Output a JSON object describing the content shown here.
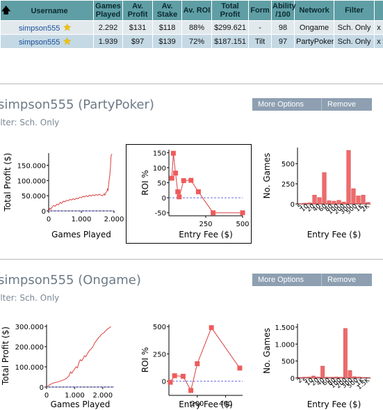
{
  "table": {
    "headers": {
      "username": "Username",
      "games_played": [
        "Games",
        "Played"
      ],
      "avg_profit": [
        "Av.",
        "Profit"
      ],
      "avg_stake": [
        "Av.",
        "Stake"
      ],
      "avg_roi": "Av. ROI",
      "total_profit": [
        "Total",
        "Profit"
      ],
      "form": "Form",
      "ability": [
        "Ability",
        "/100"
      ],
      "network": "Network",
      "filter": "Filter"
    },
    "rows": [
      {
        "username": "simpson555",
        "games_played": "2.292",
        "avg_profit": "$131",
        "avg_stake": "$118",
        "avg_roi": "88%",
        "total_profit": "$299.621",
        "form": "-",
        "ability": "98",
        "network": "Ongame",
        "filter": "Sch. Only",
        "remove": "x"
      },
      {
        "username": "simpson555",
        "games_played": "1.939",
        "avg_profit": "$97",
        "avg_stake": "$139",
        "avg_roi": "72%",
        "total_profit": "$187.151",
        "form": "Tilt",
        "ability": "97",
        "network": "PartyPoker",
        "filter": "Sch. Only",
        "remove": "x"
      }
    ]
  },
  "colors": {
    "header_bg": "#5f9ea5",
    "row1_bg": "#e2e9ed",
    "row2_bg": "#c5d9e5",
    "series": "#d94040",
    "marker": "#ef5b5b",
    "bar": "#ef6b6b",
    "dashed": "#6a6adf",
    "button_bg": "#8d9fb1"
  },
  "icons": {
    "sort": "up-arrow-icon",
    "star": "star-icon",
    "remove": "close-icon"
  },
  "sections": [
    {
      "title": "simpson555 (PartyPoker)",
      "filter": "ilter: Sch. Only",
      "buttons": {
        "more": "More Options",
        "remove": "Remove"
      }
    },
    {
      "title": "simpson555 (Ongame)",
      "filter": "ilter: Sch. Only",
      "buttons": {
        "more": "More Options",
        "remove": "Remove"
      }
    }
  ],
  "chart_data": [
    {
      "type": "line",
      "section": "PartyPoker",
      "ylabel": "Total Profit ($)",
      "xlabel": "Games Played",
      "xlim": [
        0,
        2000
      ],
      "ylim": [
        0,
        190000
      ],
      "xticks": [
        0,
        1000,
        2000
      ],
      "xtick_labels": [
        "0",
        "1.000",
        "2.000"
      ],
      "yticks": [
        0,
        50000,
        100000,
        150000
      ],
      "ytick_labels": [
        "0",
        "50.000",
        "100.000",
        "150.000"
      ],
      "x": [
        0,
        30,
        60,
        100,
        150,
        200,
        250,
        300,
        350,
        400,
        450,
        500,
        550,
        600,
        650,
        700,
        750,
        800,
        850,
        900,
        950,
        1000,
        1050,
        1100,
        1150,
        1200,
        1250,
        1300,
        1350,
        1400,
        1450,
        1500,
        1550,
        1600,
        1650,
        1700,
        1720,
        1750,
        1780,
        1800,
        1820,
        1850,
        1870,
        1890,
        1910,
        1939
      ],
      "y": [
        0,
        8000,
        5000,
        12000,
        18000,
        15000,
        22000,
        20000,
        28000,
        25000,
        32000,
        30000,
        35000,
        33000,
        38000,
        36000,
        40000,
        37000,
        42000,
        40000,
        45000,
        43000,
        48000,
        46000,
        50000,
        47000,
        52000,
        49000,
        53000,
        50000,
        54000,
        51000,
        55000,
        52000,
        50000,
        56000,
        52000,
        60000,
        64000,
        72000,
        68000,
        100000,
        115000,
        140000,
        182000,
        187151
      ]
    },
    {
      "type": "line",
      "section": "PartyPoker",
      "ylabel": "ROI %",
      "xlabel": "Entry Fee ($)",
      "xlim": [
        0,
        500
      ],
      "ylim": [
        -60,
        160
      ],
      "xticks": [
        250,
        500
      ],
      "xtick_labels": [
        "250",
        "500"
      ],
      "yticks": [
        -50,
        0,
        50,
        100,
        150
      ],
      "ytick_labels": [
        "-50",
        "0",
        "50",
        "100",
        "150"
      ],
      "x": [
        20,
        30,
        45,
        60,
        70,
        100,
        150,
        200,
        300,
        500
      ],
      "y": [
        65,
        148,
        82,
        20,
        3,
        57,
        58,
        20,
        -50,
        -50
      ]
    },
    {
      "type": "bar",
      "section": "PartyPoker",
      "ylabel": "No. Games",
      "xlabel": "Entry Fee ($)",
      "ylim": [
        0,
        700
      ],
      "yticks": [
        0,
        250,
        500
      ],
      "ytick_labels": [
        "0",
        "250",
        "500"
      ],
      "categories": [
        "5",
        "10",
        "20",
        "30",
        "40",
        "50",
        "60",
        "80",
        "100",
        "150",
        "200",
        "300",
        "500",
        "1K",
        "2K"
      ],
      "category_labels": [
        "5",
        "10",
        "20",
        "40",
        "60",
        "80",
        "100",
        "200",
        "300",
        "500",
        "1K",
        "2K"
      ],
      "values": [
        5,
        10,
        15,
        110,
        80,
        390,
        40,
        35,
        45,
        25,
        665,
        190,
        100,
        110,
        20
      ]
    },
    {
      "type": "line",
      "section": "Ongame",
      "ylabel": "Total Profit ($)",
      "xlabel": "Games Played",
      "xlim": [
        0,
        2400
      ],
      "ylim": [
        0,
        310000
      ],
      "xticks": [
        0,
        1000,
        2000
      ],
      "xtick_labels": [
        "0",
        "1.000",
        "2.000"
      ],
      "yticks": [
        0,
        100000,
        200000,
        300000
      ],
      "ytick_labels": [
        "0",
        "100.000",
        "200.000",
        "300.000"
      ],
      "x": [
        0,
        100,
        200,
        300,
        400,
        500,
        600,
        700,
        800,
        850,
        900,
        950,
        1000,
        1050,
        1100,
        1150,
        1200,
        1250,
        1300,
        1350,
        1400,
        1450,
        1500,
        1550,
        1600,
        1650,
        1700,
        1750,
        1800,
        1850,
        1900,
        1950,
        2000,
        2050,
        2100,
        2150,
        2200,
        2250,
        2292
      ],
      "y": [
        0,
        10000,
        18000,
        22000,
        25000,
        30000,
        35000,
        42000,
        55000,
        75000,
        68000,
        80000,
        90000,
        100000,
        95000,
        120000,
        135000,
        130000,
        140000,
        155000,
        150000,
        165000,
        175000,
        185000,
        190000,
        200000,
        215000,
        225000,
        235000,
        245000,
        250000,
        260000,
        265000,
        270000,
        278000,
        285000,
        290000,
        295000,
        299621
      ]
    },
    {
      "type": "line",
      "section": "Ongame",
      "ylabel": "ROI %",
      "xlabel": "Entry Fee ($)",
      "xlim": [
        0,
        520
      ],
      "ylim": [
        -130,
        520
      ],
      "xticks": [
        200,
        400
      ],
      "xtick_labels": [
        "200",
        "400"
      ],
      "yticks": [
        0,
        250,
        500
      ],
      "ytick_labels": [
        "0",
        "250",
        "500"
      ],
      "x": [
        10,
        40,
        100,
        155,
        200,
        300,
        500
      ],
      "y": [
        -10,
        50,
        45,
        -85,
        160,
        490,
        120
      ]
    },
    {
      "type": "bar",
      "section": "Ongame",
      "ylabel": "No. Games",
      "xlabel": "Entry Fee ($)",
      "ylim": [
        0,
        1600
      ],
      "yticks": [
        0,
        500,
        1000,
        1500
      ],
      "ytick_labels": [
        "0",
        "500",
        "1.000",
        "1.500"
      ],
      "categories": [
        "2",
        "5",
        "10",
        "20",
        "30",
        "40",
        "50",
        "60",
        "80",
        "100",
        "150",
        "200",
        "300",
        "500",
        "1K",
        "1.5K"
      ],
      "category_labels": [
        "2",
        "5",
        "10",
        "20",
        "40",
        "60",
        "80",
        "100",
        "200",
        "300",
        "500",
        "1K",
        "1.5K"
      ],
      "values": [
        20,
        25,
        30,
        60,
        30,
        350,
        25,
        25,
        30,
        25,
        1460,
        220,
        40,
        30,
        20,
        15
      ]
    }
  ]
}
